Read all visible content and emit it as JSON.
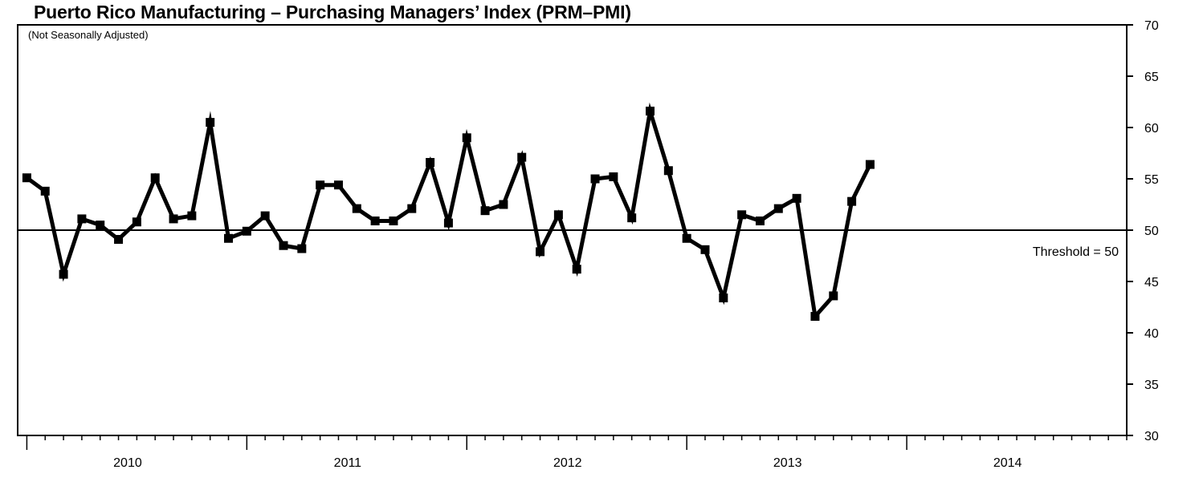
{
  "chart_data": {
    "type": "line",
    "title": "Puerto Rico Manufacturing – Purchasing Managers’ Index (PRM–PMI)",
    "subtitle": "(Not Seasonally Adjusted)",
    "xlabel": "",
    "ylabel": "",
    "ylim": [
      30,
      70
    ],
    "y_ticks": [
      "30",
      "35",
      "40",
      "45",
      "50",
      "55",
      "60",
      "65",
      "70"
    ],
    "y_axis_side": "right",
    "x_range": [
      "2009-09",
      "2014-08"
    ],
    "year_labels": [
      {
        "label": "2010",
        "start": "2009-09",
        "end": "2010-08"
      },
      {
        "label": "2011",
        "start": "2010-09",
        "end": "2011-08"
      },
      {
        "label": "2012",
        "start": "2011-09",
        "end": "2012-08"
      },
      {
        "label": "2013",
        "start": "2012-09",
        "end": "2013-08"
      },
      {
        "label": "2014",
        "start": "2013-09",
        "end": "2014-08"
      }
    ],
    "threshold": {
      "value": 50,
      "label": "Threshold = 50"
    },
    "grid": false,
    "series": [
      {
        "color": "#000000",
        "marker": "square",
        "x": [
          "2009-09",
          "2009-10",
          "2009-11",
          "2009-12",
          "2010-01",
          "2010-02",
          "2010-03",
          "2010-04",
          "2010-05",
          "2010-06",
          "2010-07",
          "2010-08",
          "2010-09",
          "2010-10",
          "2010-11",
          "2010-12",
          "2011-01",
          "2011-02",
          "2011-03",
          "2011-04",
          "2011-05",
          "2011-06",
          "2011-07",
          "2011-08",
          "2011-09",
          "2011-10",
          "2011-11",
          "2011-12",
          "2012-01",
          "2012-02",
          "2012-03",
          "2012-04",
          "2012-05",
          "2012-06",
          "2012-07",
          "2012-08",
          "2012-09",
          "2012-10",
          "2012-11",
          "2012-12",
          "2013-01",
          "2013-02",
          "2013-03",
          "2013-04",
          "2013-05",
          "2013-06",
          "2013-07",
          "2013-08",
          "2013-09",
          "2013-10",
          "2013-11",
          "2013-12",
          "2014-01",
          "2014-02",
          "2014-03",
          "2014-04",
          "2014-05",
          "2014-06",
          "2014-07",
          "2014-08"
        ],
        "values": [
          55.1,
          53.8,
          45.7,
          51.1,
          50.5,
          49.1,
          50.8,
          55.1,
          51.1,
          51.4,
          60.5,
          49.2,
          49.9,
          51.4,
          48.5,
          48.2,
          54.4,
          54.4,
          52.1,
          50.9,
          50.9,
          52.1,
          56.6,
          50.7,
          59.0,
          51.9,
          52.5,
          57.1,
          47.9,
          51.5,
          46.2,
          55.0,
          55.2,
          51.2,
          61.6,
          55.8,
          49.2,
          48.1,
          43.4,
          51.5,
          50.9,
          52.1,
          53.1,
          41.6,
          43.6,
          52.8,
          56.4,
          null,
          null,
          null,
          null,
          null,
          null,
          null,
          null,
          null,
          null,
          null,
          null,
          null
        ]
      }
    ]
  }
}
